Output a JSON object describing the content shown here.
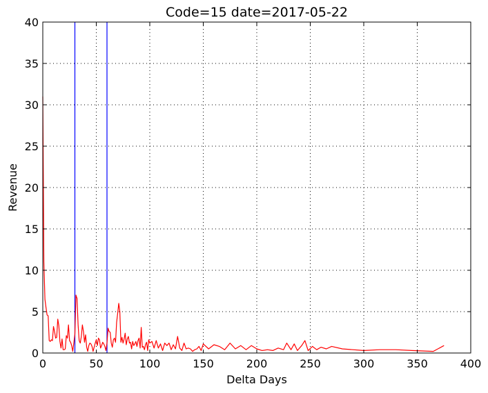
{
  "chart_data": {
    "type": "line",
    "title": "Code=15 date=2017-05-22",
    "xlabel": "Delta Days",
    "ylabel": "Revenue",
    "xlim": [
      0,
      400
    ],
    "ylim": [
      0,
      40
    ],
    "xticks": [
      0,
      50,
      100,
      150,
      200,
      250,
      300,
      350,
      400
    ],
    "yticks": [
      0,
      5,
      10,
      15,
      20,
      25,
      30,
      35,
      40
    ],
    "grid": true,
    "grid_style": "dotted",
    "vlines": [
      {
        "x": 30,
        "color": "#0000ff"
      },
      {
        "x": 60,
        "color": "#0000ff"
      }
    ],
    "series": [
      {
        "color": "#ff0000",
        "x": [
          0,
          1,
          2,
          3,
          4,
          5,
          6,
          7,
          8,
          9,
          10,
          11,
          12,
          13,
          14,
          15,
          16,
          17,
          18,
          19,
          20,
          21,
          22,
          23,
          24,
          25,
          26,
          27,
          28,
          29,
          30,
          31,
          32,
          33,
          34,
          35,
          36,
          37,
          38,
          39,
          40,
          41,
          42,
          43,
          44,
          45,
          46,
          47,
          48,
          49,
          50,
          51,
          52,
          53,
          54,
          55,
          56,
          57,
          58,
          59,
          60,
          61,
          62,
          63,
          64,
          65,
          66,
          67,
          68,
          69,
          70,
          71,
          72,
          73,
          74,
          75,
          76,
          77,
          78,
          79,
          80,
          81,
          82,
          83,
          84,
          85,
          86,
          87,
          88,
          89,
          90,
          91,
          92,
          93,
          94,
          95,
          96,
          97,
          98,
          99,
          100,
          102,
          104,
          106,
          108,
          110,
          112,
          114,
          116,
          118,
          120,
          122,
          124,
          126,
          128,
          130,
          132,
          134,
          136,
          138,
          140,
          142,
          144,
          146,
          148,
          150,
          155,
          160,
          165,
          170,
          175,
          180,
          185,
          190,
          195,
          200,
          205,
          210,
          215,
          220,
          225,
          228,
          232,
          235,
          238,
          242,
          245,
          248,
          252,
          256,
          260,
          265,
          270,
          280,
          300,
          315,
          330,
          345,
          365,
          375
        ],
        "y": [
          31,
          11,
          6.5,
          5.5,
          4.6,
          4.5,
          1.5,
          1.4,
          1.6,
          1.5,
          3.2,
          2.6,
          1.8,
          1.9,
          4.1,
          3.3,
          1.4,
          0.6,
          1.7,
          0.4,
          0.4,
          0.5,
          2.1,
          1.8,
          3.4,
          1.5,
          1.3,
          0.9,
          0.2,
          1.2,
          2.3,
          7.0,
          6.6,
          3.4,
          1.5,
          1.2,
          2.0,
          3.4,
          2.6,
          1.3,
          2.2,
          0.7,
          0.2,
          0.9,
          1.2,
          1.1,
          0.8,
          0.2,
          0.7,
          1.2,
          1.6,
          0.9,
          1.8,
          1.6,
          0.6,
          0.9,
          1.3,
          1.1,
          0.8,
          0.3,
          1.2,
          3.0,
          2.6,
          2.5,
          1.2,
          0.7,
          1.6,
          1.8,
          1.3,
          3.7,
          4.8,
          6.0,
          5.0,
          1.3,
          1.9,
          1.2,
          1.7,
          2.4,
          1.0,
          1.7,
          2.0,
          1.2,
          1.3,
          0.5,
          1.4,
          0.9,
          1.1,
          1.4,
          0.8,
          1.5,
          1.8,
          0.6,
          3.1,
          0.7,
          0.8,
          0.4,
          1.0,
          1.3,
          0.3,
          1.6,
          1.2,
          1.4,
          0.6,
          1.5,
          0.6,
          1.1,
          0.3,
          1.2,
          0.9,
          1.2,
          0.4,
          1.0,
          0.5,
          2.0,
          0.6,
          0.3,
          1.2,
          0.5,
          0.6,
          0.5,
          0.2,
          0.4,
          0.5,
          0.8,
          0.3,
          1.1,
          0.5,
          1.0,
          0.8,
          0.4,
          1.2,
          0.5,
          0.9,
          0.4,
          0.9,
          0.5,
          0.3,
          0.4,
          0.3,
          0.6,
          0.4,
          1.2,
          0.4,
          1.1,
          0.3,
          0.9,
          1.5,
          0.3,
          0.8,
          0.4,
          0.7,
          0.5,
          0.8,
          0.5,
          0.3,
          0.4,
          0.4,
          0.3,
          0.2,
          0.9
        ]
      }
    ]
  }
}
